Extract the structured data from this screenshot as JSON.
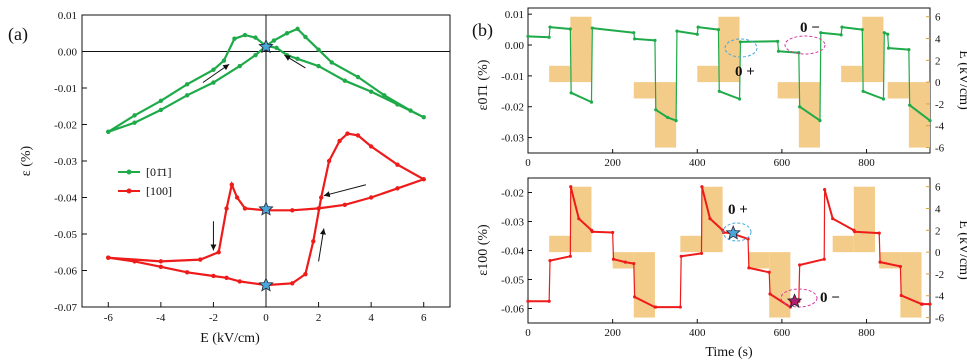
{
  "chart_data": [
    {
      "type": "scatter",
      "panel_label": "(a)",
      "xlabel": "E (kV/cm)",
      "ylabel": "ε (%)",
      "xlim": [
        -7,
        7
      ],
      "ylim": [
        -0.07,
        0.01
      ],
      "xticks": [
        "-6",
        "-4",
        "-2",
        "0",
        "2",
        "4",
        "6"
      ],
      "yticks": [
        "0.01",
        "0.00",
        "-0.01",
        "-0.02",
        "-0.03",
        "-0.04",
        "-0.05",
        "-0.06",
        "-0.07"
      ],
      "legend": {
        "placement": "left-middle",
        "entries": [
          "[01̄1]",
          "[100]"
        ]
      },
      "colors": {
        "green": "#1faa4a",
        "red": "#ee1b1b",
        "star": "#4aa6d8"
      },
      "series": [
        {
          "name": "[01̄1]",
          "color": "#1faa4a",
          "loop": [
            [
              -6,
              -0.022
            ],
            [
              -5,
              -0.0175
            ],
            [
              -4,
              -0.0135
            ],
            [
              -3,
              -0.009
            ],
            [
              -2,
              -0.005
            ],
            [
              -1.6,
              -0.0025
            ],
            [
              -1.2,
              0.0035
            ],
            [
              -0.8,
              0.0045
            ],
            [
              -0.4,
              0.0038
            ],
            [
              0,
              0.0015
            ],
            [
              0.4,
              0.001
            ],
            [
              0.8,
              -0.001
            ],
            [
              1.2,
              -0.002
            ],
            [
              2,
              -0.004
            ],
            [
              3,
              -0.008
            ],
            [
              4,
              -0.011
            ],
            [
              5,
              -0.0145
            ],
            [
              6,
              -0.018
            ],
            [
              5.5,
              -0.0162
            ],
            [
              4.5,
              -0.012
            ],
            [
              3.5,
              -0.007
            ],
            [
              2.5,
              -0.003
            ],
            [
              2,
              0.0005
            ],
            [
              1.5,
              0.004
            ],
            [
              1.2,
              0.0062
            ],
            [
              0.8,
              0.005
            ],
            [
              0.3,
              0.003
            ],
            [
              0,
              0.0015
            ],
            [
              -0.4,
              -0.001
            ],
            [
              -1,
              -0.004
            ],
            [
              -2,
              -0.0085
            ],
            [
              -3,
              -0.012
            ],
            [
              -4,
              -0.016
            ],
            [
              -5,
              -0.0195
            ],
            [
              -6,
              -0.022
            ]
          ]
        },
        {
          "name": "[100]",
          "color": "#ee1b1b",
          "loop": [
            [
              -6,
              -0.0565
            ],
            [
              -5,
              -0.0575
            ],
            [
              -4,
              -0.059
            ],
            [
              -3,
              -0.0605
            ],
            [
              -2,
              -0.0615
            ],
            [
              -1.5,
              -0.062
            ],
            [
              -1,
              -0.063
            ],
            [
              0,
              -0.064
            ],
            [
              1,
              -0.0635
            ],
            [
              1.5,
              -0.061
            ],
            [
              1.8,
              -0.052
            ],
            [
              2.1,
              -0.04
            ],
            [
              2.4,
              -0.03
            ],
            [
              2.8,
              -0.0245
            ],
            [
              3.1,
              -0.0225
            ],
            [
              3.5,
              -0.023
            ],
            [
              4,
              -0.026
            ],
            [
              5,
              -0.031
            ],
            [
              6,
              -0.035
            ],
            [
              5,
              -0.0375
            ],
            [
              4,
              -0.04
            ],
            [
              3,
              -0.042
            ],
            [
              2,
              -0.043
            ],
            [
              1,
              -0.0435
            ],
            [
              0,
              -0.0435
            ],
            [
              -0.8,
              -0.043
            ],
            [
              -1.1,
              -0.04
            ],
            [
              -1.3,
              -0.0365
            ],
            [
              -1.5,
              -0.043
            ],
            [
              -1.8,
              -0.055
            ],
            [
              -2.5,
              -0.057
            ],
            [
              -4,
              -0.0575
            ],
            [
              -6,
              -0.0565
            ]
          ]
        }
      ],
      "stars": [
        [
          0,
          0.0013
        ],
        [
          0,
          -0.0432
        ],
        [
          0,
          -0.064
        ]
      ],
      "arrows": [
        {
          "from": [
            -2.4,
            -0.0085
          ],
          "to": [
            -1.4,
            -0.0035
          ]
        },
        {
          "from": [
            1.5,
            -0.0045
          ],
          "to": [
            0.7,
            -0.001
          ]
        },
        {
          "from": [
            3.8,
            -0.0365
          ],
          "to": [
            2.2,
            -0.0395
          ]
        },
        {
          "from": [
            -2.0,
            -0.0465
          ],
          "to": [
            -2.0,
            -0.0545
          ]
        },
        {
          "from": [
            2.0,
            -0.0575
          ],
          "to": [
            2.2,
            -0.0485
          ]
        }
      ]
    },
    {
      "type": "line",
      "panel_label": "(b)",
      "ylabel": "ε01̄1 (%)",
      "y2label": "E (kV/cm)",
      "xlim": [
        0,
        950
      ],
      "ylim": [
        -0.035,
        0.012
      ],
      "y2lim": [
        -6.5,
        6.8
      ],
      "xticks": [
        "0",
        "200",
        "400",
        "600",
        "800"
      ],
      "yticks": [
        "0.01",
        "0.00",
        "-0.01",
        "-0.02",
        "-0.03"
      ],
      "y2ticks": [
        "6",
        "4",
        "2",
        "0",
        "-2",
        "-4",
        "-6"
      ],
      "annotations": [
        "0 −",
        "0 +"
      ],
      "field_pulses_kVcm": [
        {
          "t0": 50,
          "t1": 100,
          "E": 1.5
        },
        {
          "t0": 100,
          "t1": 150,
          "E": 6
        },
        {
          "t0": 250,
          "t1": 300,
          "E": -1.5
        },
        {
          "t0": 300,
          "t1": 350,
          "E": -6
        },
        {
          "t0": 400,
          "t1": 450,
          "E": 1.5
        },
        {
          "t0": 450,
          "t1": 500,
          "E": 6
        },
        {
          "t0": 590,
          "t1": 640,
          "E": -1.5
        },
        {
          "t0": 640,
          "t1": 690,
          "E": -6
        },
        {
          "t0": 740,
          "t1": 790,
          "E": 1.5
        },
        {
          "t0": 790,
          "t1": 840,
          "E": 6
        },
        {
          "t0": 850,
          "t1": 900,
          "E": -1.5
        },
        {
          "t0": 900,
          "t1": 950,
          "E": -6
        }
      ],
      "strain_segments": [
        [
          [
            0,
            0.0028
          ],
          [
            50,
            0.0025
          ]
        ],
        [
          [
            52,
            0.0058
          ],
          [
            100,
            0.0052
          ]
        ],
        [
          [
            102,
            -0.0155
          ],
          [
            150,
            -0.0185
          ]
        ],
        [
          [
            152,
            0.0055
          ],
          [
            250,
            0.004
          ]
        ],
        [
          [
            252,
            0.002
          ],
          [
            300,
            0.0015
          ]
        ],
        [
          [
            302,
            -0.021
          ],
          [
            330,
            -0.0235
          ],
          [
            350,
            -0.0245
          ]
        ],
        [
          [
            352,
            0.0045
          ],
          [
            400,
            0.0035
          ]
        ],
        [
          [
            402,
            0.0058
          ],
          [
            450,
            0.005
          ]
        ],
        [
          [
            452,
            -0.015
          ],
          [
            500,
            -0.0175
          ]
        ],
        [
          [
            502,
            0.001
          ],
          [
            590,
            0.0012
          ]
        ],
        [
          [
            592,
            -0.002
          ],
          [
            640,
            -0.0025
          ]
        ],
        [
          [
            642,
            -0.02
          ],
          [
            690,
            -0.0245
          ]
        ],
        [
          [
            692,
            0.004
          ],
          [
            740,
            0.0033
          ]
        ],
        [
          [
            742,
            0.0058
          ],
          [
            790,
            0.005
          ]
        ],
        [
          [
            792,
            -0.015
          ],
          [
            840,
            -0.0175
          ]
        ],
        [
          [
            842,
            0.004
          ],
          [
            850,
            0.0035
          ]
        ],
        [
          [
            852,
            -0.001
          ],
          [
            900,
            -0.0015
          ]
        ],
        [
          [
            902,
            -0.0195
          ],
          [
            950,
            -0.0245
          ]
        ]
      ]
    },
    {
      "type": "line",
      "ylabel": "ε100 (%)",
      "y2label": "E (kV/cm)",
      "xlabel": "Time (s)",
      "xlim": [
        0,
        950
      ],
      "ylim": [
        -0.065,
        -0.015
      ],
      "y2lim": [
        -6.5,
        6.8
      ],
      "xticks": [
        "0",
        "200",
        "400",
        "600",
        "800"
      ],
      "yticks": [
        "-0.02",
        "-0.03",
        "-0.04",
        "-0.05",
        "-0.06"
      ],
      "y2ticks": [
        "6",
        "4",
        "2",
        "0",
        "-2",
        "-4",
        "-6"
      ],
      "annotations": [
        "0 +",
        "0 −"
      ],
      "field_pulses_kVcm": [
        {
          "t0": 50,
          "t1": 100,
          "E": 1.5
        },
        {
          "t0": 100,
          "t1": 150,
          "E": 6
        },
        {
          "t0": 200,
          "t1": 250,
          "E": -1.5
        },
        {
          "t0": 250,
          "t1": 300,
          "E": -6
        },
        {
          "t0": 360,
          "t1": 410,
          "E": 1.5
        },
        {
          "t0": 410,
          "t1": 460,
          "E": 6
        },
        {
          "t0": 520,
          "t1": 570,
          "E": -1.5
        },
        {
          "t0": 570,
          "t1": 620,
          "E": -6
        },
        {
          "t0": 720,
          "t1": 770,
          "E": 1.5
        },
        {
          "t0": 770,
          "t1": 820,
          "E": 6
        },
        {
          "t0": 830,
          "t1": 880,
          "E": -1.5
        },
        {
          "t0": 880,
          "t1": 930,
          "E": -6
        }
      ],
      "strain_segments": [
        [
          [
            0,
            -0.0575
          ],
          [
            50,
            -0.0575
          ]
        ],
        [
          [
            52,
            -0.0435
          ],
          [
            100,
            -0.042
          ]
        ],
        [
          [
            101,
            -0.018
          ],
          [
            120,
            -0.029
          ],
          [
            150,
            -0.033
          ]
        ],
        [
          [
            152,
            -0.0335
          ],
          [
            200,
            -0.0338
          ]
        ],
        [
          [
            202,
            -0.043
          ],
          [
            230,
            -0.044
          ],
          [
            250,
            -0.0445
          ]
        ],
        [
          [
            252,
            -0.056
          ],
          [
            300,
            -0.0595
          ]
        ],
        [
          [
            302,
            -0.0595
          ],
          [
            360,
            -0.0595
          ]
        ],
        [
          [
            362,
            -0.042
          ],
          [
            410,
            -0.041
          ]
        ],
        [
          [
            411,
            -0.018
          ],
          [
            430,
            -0.029
          ],
          [
            460,
            -0.033
          ]
        ],
        [
          [
            462,
            -0.0338
          ],
          [
            480,
            -0.034
          ],
          [
            520,
            -0.036
          ]
        ],
        [
          [
            522,
            -0.046
          ],
          [
            570,
            -0.0475
          ]
        ],
        [
          [
            572,
            -0.055
          ],
          [
            620,
            -0.0595
          ]
        ],
        [
          [
            622,
            -0.0575
          ],
          [
            640,
            -0.0575
          ]
        ],
        [
          [
            642,
            -0.045
          ],
          [
            700,
            -0.043
          ]
        ],
        [
          [
            701,
            -0.019
          ],
          [
            720,
            -0.029
          ],
          [
            770,
            -0.033
          ]
        ],
        [
          [
            772,
            -0.0335
          ],
          [
            830,
            -0.034
          ]
        ],
        [
          [
            832,
            -0.044
          ],
          [
            880,
            -0.0455
          ]
        ],
        [
          [
            882,
            -0.0555
          ],
          [
            930,
            -0.0585
          ]
        ],
        [
          [
            932,
            -0.0585
          ],
          [
            950,
            -0.0585
          ]
        ]
      ],
      "stars": [
        [
          485,
          -0.034
        ],
        [
          630,
          -0.0575
        ]
      ]
    }
  ]
}
